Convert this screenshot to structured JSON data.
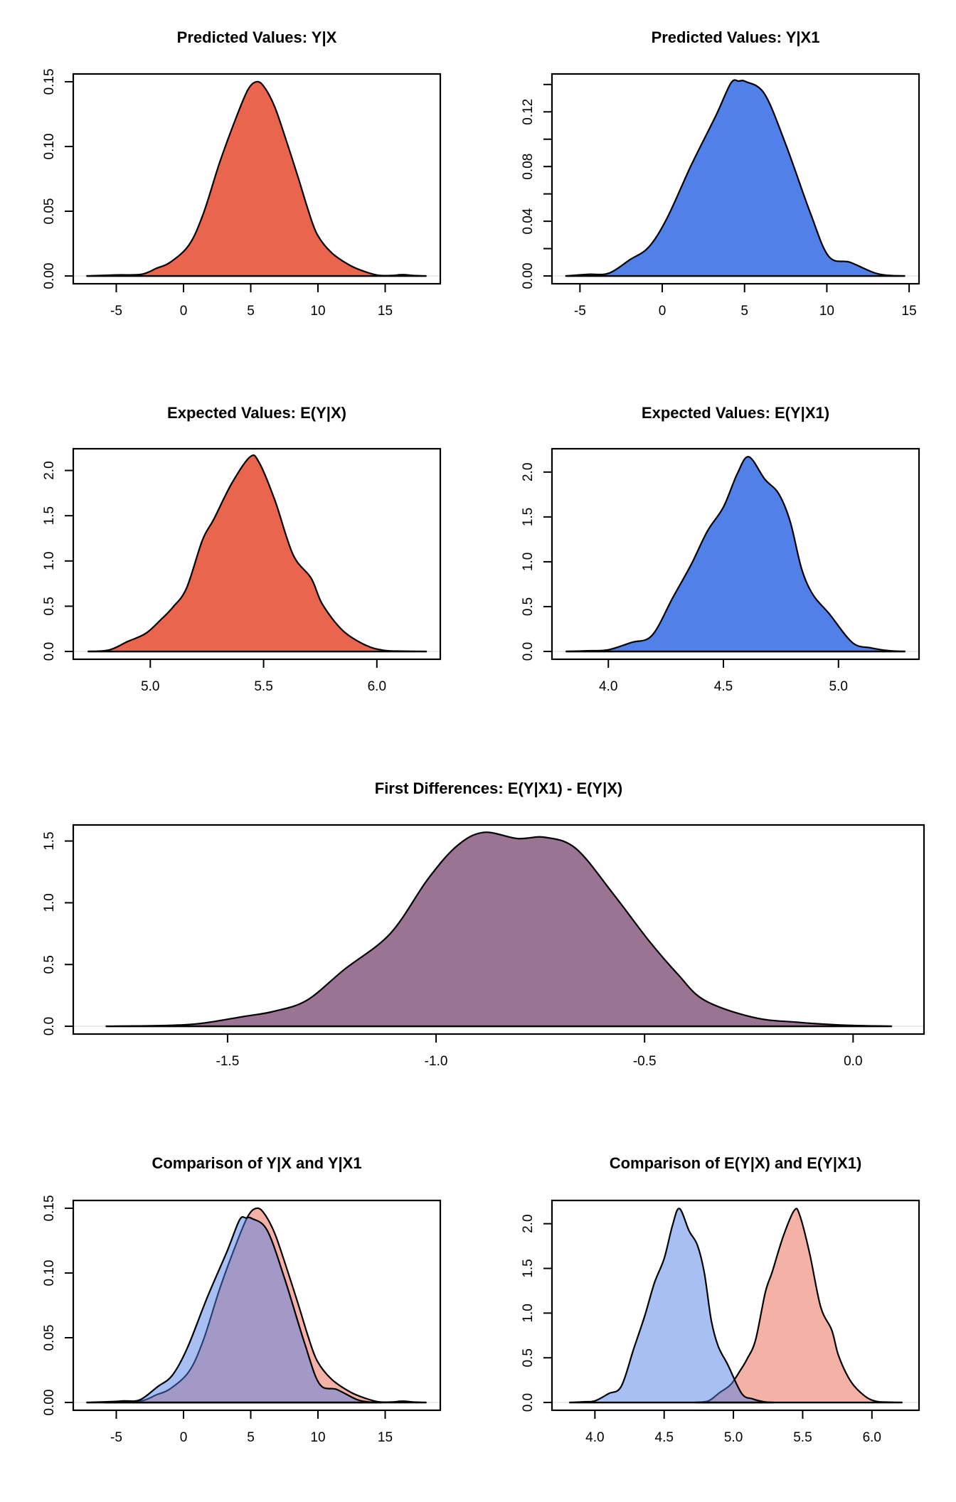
{
  "colors": {
    "x_fill": "#e9654e",
    "x1_fill": "#5080e8",
    "fd_fill": "#9b7493",
    "x_fill_translucent": "rgba(233,101,78,0.5)",
    "x1_fill_translucent": "rgba(80,128,232,0.5)"
  },
  "chart_data": [
    {
      "id": "pv-x",
      "type": "area",
      "title": "Predicted Values: Y|X",
      "xlabel": "",
      "ylabel": "",
      "xlim": [
        -8.2,
        19.1
      ],
      "ylim": [
        -0.006,
        0.156
      ],
      "xticks": [
        -5,
        0,
        5,
        10,
        15
      ],
      "xtick_labels": [
        "-5",
        "0",
        "5",
        "10",
        "15"
      ],
      "yticks": [
        0.0,
        0.05,
        0.1,
        0.15
      ],
      "ytick_labels": [
        "0.00",
        "0.05",
        "0.10",
        "0.15"
      ],
      "grid": false,
      "series": [
        {
          "name": "Y|X",
          "fill": "x_fill",
          "x": [
            -7.22,
            -5.0,
            -3.13,
            -2.0,
            -1.0,
            0.41,
            1.47,
            2.7,
            3.94,
            4.8,
            5.44,
            6.0,
            6.77,
            7.6,
            8.53,
            9.3,
            9.95,
            11.01,
            12.42,
            13.6,
            14.54,
            15.5,
            16.3,
            17.2,
            18.07
          ],
          "y": [
            0,
            0.0008,
            0.0013,
            0.006,
            0.0105,
            0.024,
            0.048,
            0.088,
            0.123,
            0.144,
            0.15,
            0.146,
            0.131,
            0.106,
            0.076,
            0.05,
            0.032,
            0.018,
            0.008,
            0.003,
            0.0005,
            0.0004,
            0.001,
            0.0003,
            0
          ]
        }
      ]
    },
    {
      "id": "pv-x1",
      "type": "area",
      "title": "Predicted Values: Y|X1",
      "xlabel": "",
      "ylabel": "",
      "xlim": [
        -6.7,
        15.6
      ],
      "ylim": [
        -0.0057,
        0.1477
      ],
      "xticks": [
        -5,
        0,
        5,
        10,
        15
      ],
      "xtick_labels": [
        "-5",
        "0",
        "5",
        "10",
        "15"
      ],
      "yticks": [
        0.0,
        0.02,
        0.04,
        0.06,
        0.08,
        0.1,
        0.12,
        0.14
      ],
      "ytick_labels": [
        "0.00",
        "",
        "0.04",
        "",
        "0.08",
        "",
        "0.12",
        ""
      ],
      "grid": false,
      "series": [
        {
          "name": "Y|X1",
          "fill": "x1_fill",
          "x": [
            -5.88,
            -4.5,
            -3.25,
            -1.95,
            -0.83,
            0.28,
            1.76,
            3.25,
            4.17,
            4.65,
            5.1,
            6.22,
            7.51,
            9.0,
            10.11,
            11.41,
            12.89,
            13.8,
            14.75
          ],
          "y": [
            0,
            0.0012,
            0.002,
            0.012,
            0.021,
            0.042,
            0.081,
            0.117,
            0.141,
            0.1425,
            0.142,
            0.133,
            0.096,
            0.046,
            0.0144,
            0.01,
            0.0023,
            0.0004,
            0
          ]
        }
      ]
    },
    {
      "id": "ev-x",
      "type": "area",
      "title": "Expected Values: E(Y|X)",
      "xlabel": "",
      "ylabel": "",
      "xlim": [
        4.66,
        6.28
      ],
      "ylim": [
        -0.086,
        2.24
      ],
      "xticks": [
        5.0,
        5.5,
        6.0
      ],
      "xtick_labels": [
        "5.0",
        "5.5",
        "6.0"
      ],
      "yticks": [
        0.0,
        0.5,
        1.0,
        1.5,
        2.0
      ],
      "ytick_labels": [
        "0.0",
        "0.5",
        "1.0",
        "1.5",
        "2.0"
      ],
      "grid": false,
      "series": [
        {
          "name": "E(Y|X)",
          "fill": "x_fill",
          "x": [
            4.724,
            4.82,
            4.9,
            4.98,
            5.05,
            5.1,
            5.16,
            5.23,
            5.28,
            5.36,
            5.44,
            5.48,
            5.55,
            5.63,
            5.71,
            5.76,
            5.85,
            5.95,
            6.03,
            6.12,
            6.22
          ],
          "y": [
            0,
            0.018,
            0.11,
            0.2,
            0.36,
            0.49,
            0.7,
            1.23,
            1.46,
            1.86,
            2.15,
            2.09,
            1.67,
            1.07,
            0.81,
            0.52,
            0.23,
            0.07,
            0.013,
            0.004,
            0
          ]
        }
      ]
    },
    {
      "id": "ev-x1",
      "type": "area",
      "title": "Expected Values: E(Y|X1)",
      "xlabel": "",
      "ylabel": "",
      "xlim": [
        3.755,
        5.35
      ],
      "ylim": [
        -0.087,
        2.26
      ],
      "xticks": [
        4.0,
        4.5,
        5.0
      ],
      "xtick_labels": [
        "4.0",
        "4.5",
        "5.0"
      ],
      "yticks": [
        0.0,
        0.5,
        1.0,
        1.5,
        2.0
      ],
      "ytick_labels": [
        "0.0",
        "0.5",
        "1.0",
        "1.5",
        "2.0"
      ],
      "grid": false,
      "series": [
        {
          "name": "E(Y|X1)",
          "fill": "x1_fill",
          "x": [
            3.815,
            3.92,
            4.0,
            4.1,
            4.19,
            4.28,
            4.36,
            4.43,
            4.5,
            4.56,
            4.61,
            4.68,
            4.74,
            4.79,
            4.84,
            4.89,
            4.96,
            5.06,
            5.14,
            5.22,
            5.29
          ],
          "y": [
            0,
            0.008,
            0.018,
            0.1,
            0.18,
            0.6,
            0.97,
            1.34,
            1.61,
            1.98,
            2.17,
            1.92,
            1.76,
            1.45,
            0.92,
            0.63,
            0.42,
            0.1,
            0.04,
            0.008,
            0
          ]
        }
      ]
    },
    {
      "id": "fd",
      "type": "area",
      "title": "First Differences: E(Y|X1) - E(Y|X)",
      "xlabel": "",
      "ylabel": "",
      "xlim": [
        -1.87,
        0.17
      ],
      "ylim": [
        -0.063,
        1.63
      ],
      "xticks": [
        -1.5,
        -1.0,
        -0.5,
        0.0
      ],
      "xtick_labels": [
        "-1.5",
        "-1.0",
        "-0.5",
        "0.0"
      ],
      "yticks": [
        0.0,
        0.5,
        1.0,
        1.5
      ],
      "ytick_labels": [
        "0.0",
        "0.5",
        "1.0",
        "1.5"
      ],
      "grid": false,
      "series": [
        {
          "name": "E(Y|X1) - E(Y|X)",
          "fill": "fd_fill",
          "x": [
            -1.792,
            -1.65,
            -1.564,
            -1.46,
            -1.39,
            -1.31,
            -1.22,
            -1.11,
            -1.02,
            -0.95,
            -0.886,
            -0.805,
            -0.739,
            -0.665,
            -0.577,
            -0.489,
            -0.42,
            -0.356,
            -0.238,
            -0.135,
            -0.03,
            0.093
          ],
          "y": [
            0,
            0.006,
            0.023,
            0.08,
            0.12,
            0.21,
            0.46,
            0.75,
            1.19,
            1.46,
            1.57,
            1.52,
            1.53,
            1.44,
            1.08,
            0.69,
            0.42,
            0.21,
            0.071,
            0.033,
            0.01,
            0
          ]
        }
      ]
    },
    {
      "id": "cmp-pv",
      "type": "area",
      "title": "Comparison of Y|X and Y|X1",
      "xlabel": "",
      "ylabel": "",
      "xlim": [
        -8.2,
        19.1
      ],
      "ylim": [
        -0.006,
        0.156
      ],
      "xticks": [
        -5,
        0,
        5,
        10,
        15
      ],
      "xtick_labels": [
        "-5",
        "0",
        "5",
        "10",
        "15"
      ],
      "yticks": [
        0.0,
        0.05,
        0.1,
        0.15
      ],
      "ytick_labels": [
        "0.00",
        "0.05",
        "0.10",
        "0.15"
      ],
      "grid": false,
      "series_refs": [
        {
          "name": "Y|X",
          "ref": "pv-x",
          "fill": "x_fill_translucent"
        },
        {
          "name": "Y|X1",
          "ref": "pv-x1",
          "fill": "x1_fill_translucent"
        }
      ]
    },
    {
      "id": "cmp-ev",
      "type": "area",
      "title": "Comparison of E(Y|X) and E(Y|X1)",
      "xlabel": "",
      "ylabel": "",
      "xlim": [
        3.69,
        6.34
      ],
      "ylim": [
        -0.087,
        2.26
      ],
      "xticks": [
        4.0,
        4.5,
        5.0,
        5.5,
        6.0
      ],
      "xtick_labels": [
        "4.0",
        "4.5",
        "5.0",
        "5.5",
        "6.0"
      ],
      "yticks": [
        0.0,
        0.5,
        1.0,
        1.5,
        2.0
      ],
      "ytick_labels": [
        "0.0",
        "0.5",
        "1.0",
        "1.5",
        "2.0"
      ],
      "grid": false,
      "series_refs": [
        {
          "name": "E(Y|X)",
          "ref": "ev-x",
          "fill": "x_fill_translucent"
        },
        {
          "name": "E(Y|X1)",
          "ref": "ev-x1",
          "fill": "x1_fill_translucent"
        }
      ]
    }
  ]
}
